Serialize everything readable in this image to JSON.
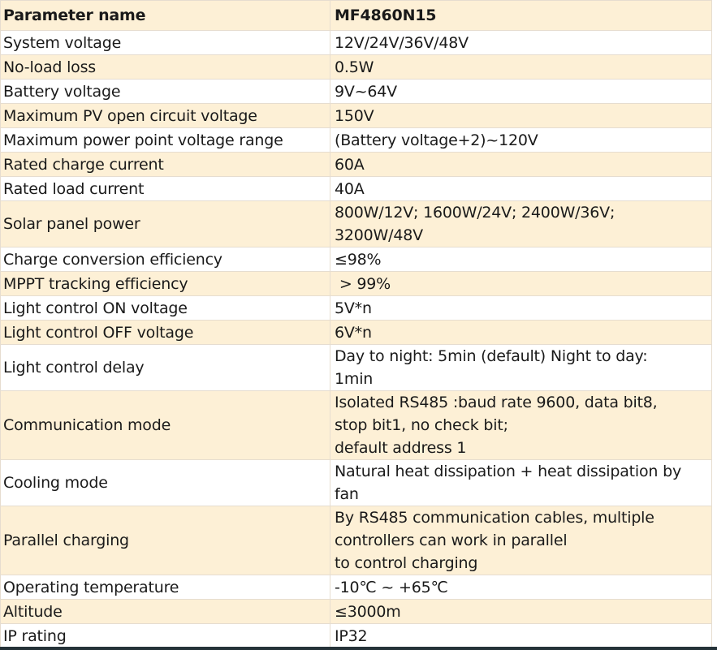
{
  "header": {
    "param": "Parameter name",
    "model": "MF4860N15"
  },
  "rows": [
    {
      "name": "System voltage",
      "value": [
        "12V/24V/36V/48V"
      ]
    },
    {
      "name": "No-load loss",
      "value": [
        "0.5W"
      ]
    },
    {
      "name": "Battery voltage",
      "value": [
        "9V~64V"
      ]
    },
    {
      "name": "Maximum PV open circuit voltage",
      "value": [
        "150V"
      ]
    },
    {
      "name": "Maximum power point voltage range",
      "value": [
        "(Battery voltage+2)~120V"
      ]
    },
    {
      "name": "Rated charge current",
      "value": [
        "60A"
      ]
    },
    {
      "name": "Rated load current",
      "value": [
        "40A"
      ]
    },
    {
      "name": "Solar panel power",
      "value": [
        "800W/12V; 1600W/24V; 2400W/36V;",
        "3200W/48V"
      ]
    },
    {
      "name": "Charge conversion efficiency",
      "value": [
        "≤98%"
      ]
    },
    {
      "name": "MPPT tracking efficiency",
      "value": [
        " > 99%"
      ]
    },
    {
      "name": "Light control ON voltage",
      "value": [
        "5V*n"
      ]
    },
    {
      "name": "Light control OFF voltage",
      "value": [
        "6V*n"
      ]
    },
    {
      "name": "Light control delay",
      "value": [
        "Day to night: 5min (default) Night to day:",
        "1min"
      ]
    },
    {
      "name": "Communication mode",
      "value": [
        "Isolated RS485 :baud rate 9600, data bit8,",
        "stop bit1, no check bit;",
        "default address 1"
      ]
    },
    {
      "name": "Cooling mode",
      "value": [
        "Natural heat dissipation + heat dissipation by",
        "fan"
      ]
    },
    {
      "name": "Parallel charging",
      "value": [
        "By RS485 communication cables, multiple",
        "controllers can work in parallel",
        "to control charging"
      ]
    },
    {
      "name": "Operating temperature",
      "value": [
        "-10℃ ~ +65℃"
      ]
    },
    {
      "name": "Altitude",
      "value": [
        "≤3000m"
      ]
    },
    {
      "name": "IP rating",
      "value": [
        "IP32"
      ]
    }
  ],
  "colors": {
    "row_alt": "#fdf0d6",
    "row": "#ffffff",
    "border": "#e6ddd0"
  }
}
